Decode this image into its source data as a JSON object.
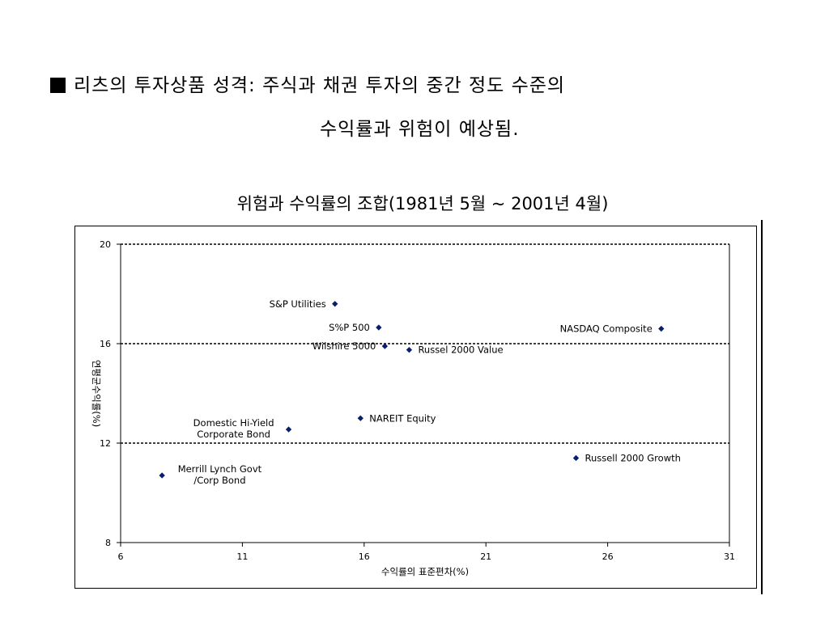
{
  "heading": {
    "line1": "리츠의 투자상품 성격: 주식과 채권 투자의 중간 정도 수준의",
    "line2": "수익률과 위험이 예상됨."
  },
  "chart_data": {
    "type": "scatter",
    "title": "위험과 수익률의 조합(1981년 5월 ~ 2001년 4월)",
    "xlabel": "수익률의 표준편차(%)",
    "ylabel": "연평균수익률(%)",
    "xlim": [
      6,
      31
    ],
    "ylim": [
      8,
      20
    ],
    "xticks": [
      6,
      11,
      16,
      21,
      26,
      31
    ],
    "yticks": [
      8,
      12,
      16,
      20
    ],
    "reference_lines_y": [
      12,
      16,
      20
    ],
    "grid": false,
    "marker_color": "#0a1f6b",
    "points": [
      {
        "label": "S&P Utilities",
        "x": 14.8,
        "y": 17.6,
        "label_side": "left"
      },
      {
        "label": "S%P 500",
        "x": 16.6,
        "y": 16.65,
        "label_side": "left"
      },
      {
        "label": "Wilshire 5000",
        "x": 16.85,
        "y": 15.9,
        "label_side": "left"
      },
      {
        "label": "Russel 2000 Value",
        "x": 17.85,
        "y": 15.75,
        "label_side": "right"
      },
      {
        "label": "NASDAQ Composite",
        "x": 28.2,
        "y": 16.6,
        "label_side": "left"
      },
      {
        "label": "NAREIT Equity",
        "x": 15.85,
        "y": 13.0,
        "label_side": "right"
      },
      {
        "label": "Domestic Hi-Yield\nCorporate Bond",
        "x": 12.9,
        "y": 12.55,
        "label_side": "left"
      },
      {
        "label": "Russell 2000 Growth",
        "x": 24.7,
        "y": 11.4,
        "label_side": "right"
      },
      {
        "label": "Merrill Lynch Govt\n/Corp Bond",
        "x": 7.7,
        "y": 10.7,
        "label_side": "right"
      }
    ]
  }
}
